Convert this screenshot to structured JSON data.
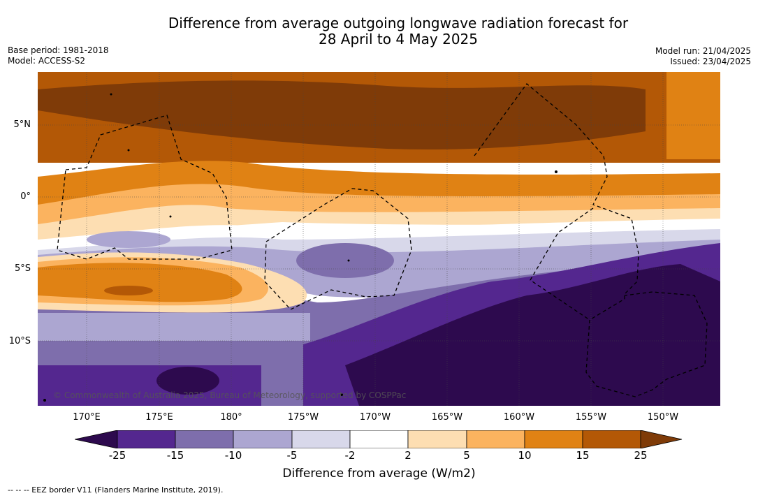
{
  "title": {
    "line1": "Difference from average outgoing longwave radiation forecast for",
    "line2": "28 April to 4 May 2025"
  },
  "meta": {
    "base_period": "Base period: 1981-2018",
    "model": "Model: ACCESS-S2",
    "model_run": "Model run: 21/04/2025",
    "issued": "Issued: 23/04/2025"
  },
  "axes": {
    "lat_labels": [
      "5°N",
      "0°",
      "5°S",
      "10°S"
    ],
    "lon_labels": [
      "170°E",
      "175°E",
      "180°",
      "175°W",
      "170°W",
      "165°W",
      "160°W",
      "155°W",
      "150°W"
    ]
  },
  "colorbar": {
    "ticks": [
      "-25",
      "-15",
      "-10",
      "-5",
      "-2",
      "2",
      "5",
      "10",
      "15",
      "25"
    ],
    "label": "Difference from average (W/m2)",
    "colors": {
      "under": "#2d0a4e",
      "c1": "#54278f",
      "c2": "#7e6eac",
      "c3": "#aca6d1",
      "c4": "#d8d8ea",
      "c5": "#ffffff",
      "c6": "#fddeb2",
      "c7": "#fbb35f",
      "c8": "#e08214",
      "c9": "#b35806",
      "over": "#7f3b08"
    }
  },
  "credit": "© Commonwealth of Australia 2025, Bureau of Meteorology, supported by COSPPac",
  "footnote": "--  --  -- EEZ border V11 (Flanders Marine Institute, 2019)."
}
